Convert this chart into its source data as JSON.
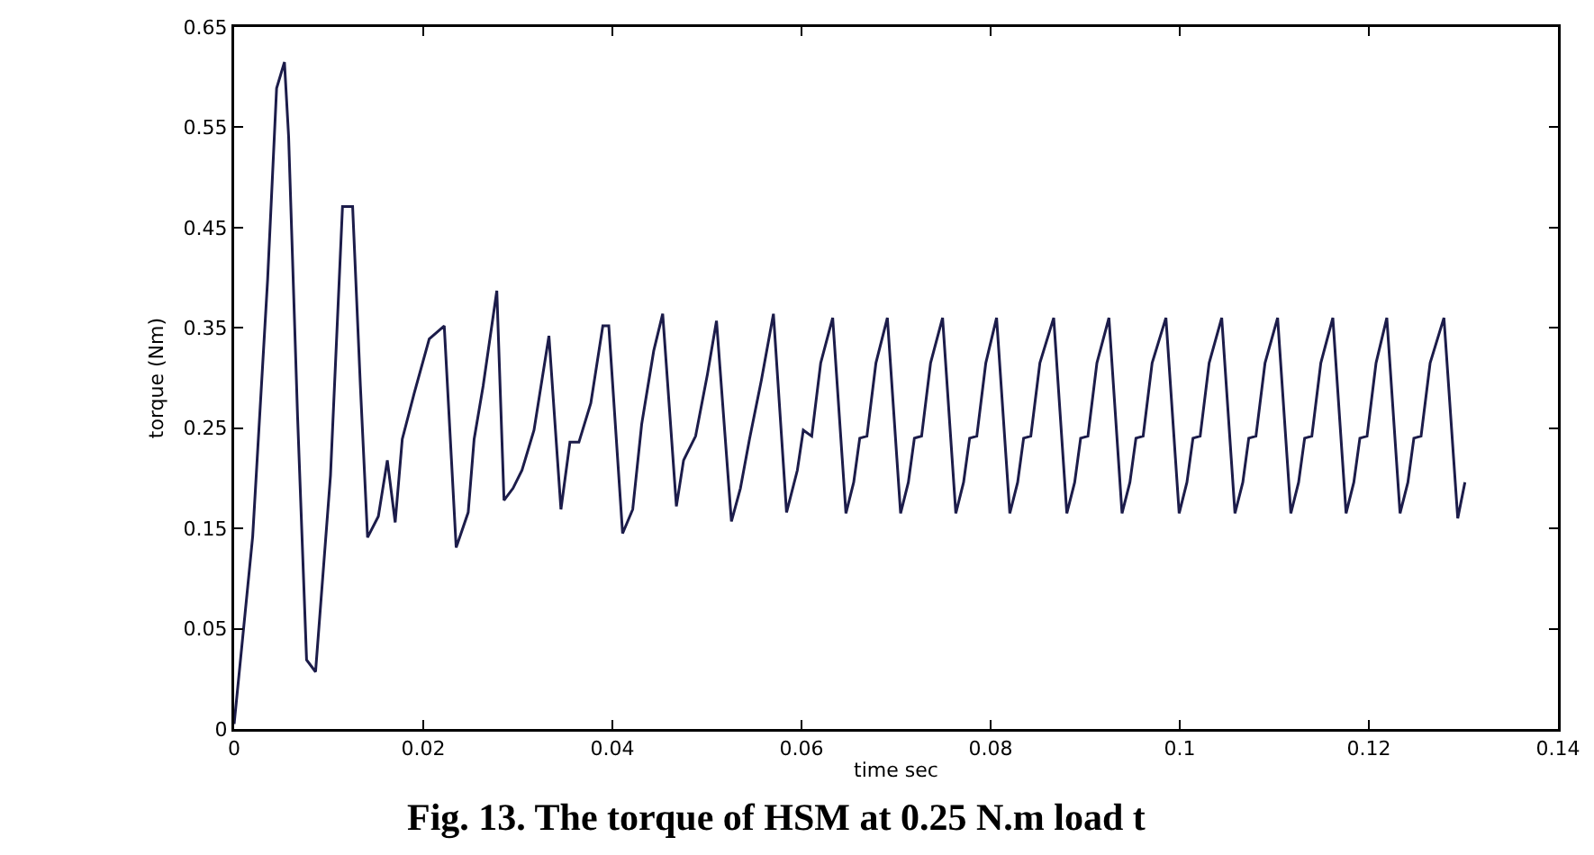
{
  "chart_data": {
    "type": "line",
    "xlabel": "time sec",
    "ylabel": "torque (Nm)",
    "annotations": [
      "Fig. 13. The torque of HSM at 0.25 N.m load t"
    ],
    "xlim": [
      0,
      0.14
    ],
    "xticks": [
      {
        "value": 0,
        "label": "0"
      },
      0.02,
      0.04,
      0.06,
      0.08,
      0.1,
      0.12,
      0.14
    ],
    "ylim": [
      -0.05,
      0.65
    ],
    "yticks": [
      {
        "value": -0.05,
        "label": "0"
      },
      0.05,
      0.15,
      0.25,
      0.35,
      0.45,
      0.55,
      0.65
    ],
    "grid": false,
    "marker": "none",
    "line_style": "solid",
    "series": [
      {
        "color": "#1c1c4a",
        "x": [
          0,
          0.00196,
          0.00354,
          0.00449,
          0.00532,
          0.00576,
          0.00671,
          0.00766,
          0.00861,
          0.01019,
          0.01146,
          0.01253,
          0.01335,
          0.01411,
          0.01525,
          0.0162,
          0.01703,
          0.01778,
          0.01905,
          0.02063,
          0.02222,
          0.02348,
          0.02475,
          0.02538,
          0.02633,
          0.02778,
          0.02854,
          0.02949,
          0.03044,
          0.03171,
          0.03329,
          0.03456,
          0.03551,
          0.03646,
          0.03772,
          0.03899,
          0.03962,
          0.04108,
          0.04215,
          0.0431,
          0.04437,
          0.04532,
          0.04677,
          0.04753,
          0.0488,
          0.05006,
          0.05101,
          0.05259,
          0.05354,
          0.0545,
          0.05576,
          0.05703,
          0.05842,
          0.05956,
          0.06019,
          0.06108,
          0.06203,
          0.0633,
          0.0647,
          0.06552,
          0.06616,
          0.06692,
          0.06787,
          0.06908,
          0.07048,
          0.0713,
          0.07194,
          0.0727,
          0.07365,
          0.07492,
          0.07632,
          0.07714,
          0.07778,
          0.07854,
          0.07949,
          0.08063,
          0.08203,
          0.08286,
          0.08349,
          0.08425,
          0.08521,
          0.08667,
          0.08806,
          0.08889,
          0.08952,
          0.09029,
          0.09124,
          0.09251,
          0.0939,
          0.09473,
          0.09537,
          0.09613,
          0.09708,
          0.09854,
          0.09994,
          0.10076,
          0.1014,
          0.10216,
          0.10311,
          0.10444,
          0.10584,
          0.10667,
          0.1073,
          0.10806,
          0.10902,
          0.11035,
          0.11175,
          0.11257,
          0.11321,
          0.11397,
          0.11492,
          0.11619,
          0.11759,
          0.11841,
          0.11905,
          0.11981,
          0.12076,
          0.1219,
          0.1233,
          0.12413,
          0.12476,
          0.12552,
          0.12648,
          0.12794,
          0.1294,
          0.13016
        ],
        "values": [
          -0.045,
          0.142,
          0.398,
          0.589,
          0.615,
          0.541,
          0.261,
          0.019,
          0.007,
          0.203,
          0.471,
          0.471,
          0.292,
          0.141,
          0.162,
          0.218,
          0.156,
          0.239,
          0.285,
          0.339,
          0.352,
          0.131,
          0.166,
          0.239,
          0.292,
          0.387,
          0.178,
          0.19,
          0.208,
          0.248,
          0.342,
          0.169,
          0.236,
          0.236,
          0.275,
          0.352,
          0.352,
          0.145,
          0.169,
          0.254,
          0.327,
          0.364,
          0.172,
          0.218,
          0.242,
          0.304,
          0.357,
          0.157,
          0.19,
          0.239,
          0.298,
          0.364,
          0.166,
          0.208,
          0.248,
          0.242,
          0.315,
          0.36,
          0.165,
          0.196,
          0.24,
          0.242,
          0.315,
          0.36,
          0.165,
          0.196,
          0.24,
          0.242,
          0.315,
          0.36,
          0.165,
          0.196,
          0.24,
          0.242,
          0.315,
          0.36,
          0.165,
          0.196,
          0.24,
          0.242,
          0.315,
          0.36,
          0.165,
          0.196,
          0.24,
          0.242,
          0.315,
          0.36,
          0.165,
          0.196,
          0.24,
          0.242,
          0.315,
          0.36,
          0.165,
          0.196,
          0.24,
          0.242,
          0.315,
          0.36,
          0.165,
          0.196,
          0.24,
          0.242,
          0.315,
          0.36,
          0.165,
          0.196,
          0.24,
          0.242,
          0.315,
          0.36,
          0.165,
          0.196,
          0.24,
          0.242,
          0.315,
          0.36,
          0.165,
          0.196,
          0.24,
          0.242,
          0.315,
          0.36,
          0.16,
          0.196
        ]
      }
    ]
  }
}
